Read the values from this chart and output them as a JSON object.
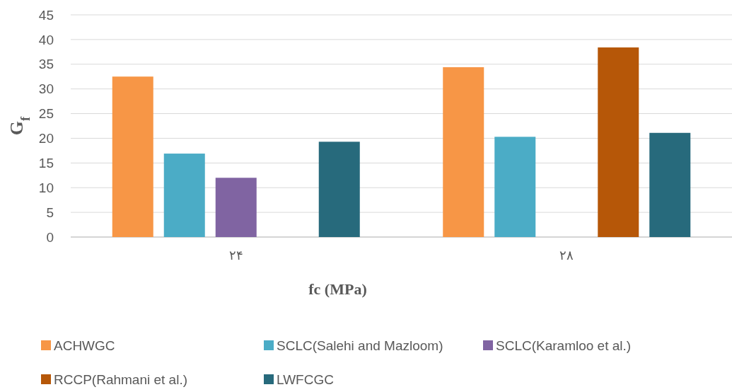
{
  "chart_data": {
    "type": "bar",
    "xlabel": "fc (MPa)",
    "ylabel": "G$_{f}$",
    "categories": [
      "۲۴",
      "۲۸"
    ],
    "series": [
      {
        "name": "ACHWGC",
        "color": "#f79646",
        "values": [
          32.5,
          34.4
        ]
      },
      {
        "name": "SCLC(Salehi and Mazloom)",
        "color": "#4bacc6",
        "values": [
          16.9,
          20.3
        ]
      },
      {
        "name": "SCLC(Karamloo et al.)",
        "color": "#8064a2",
        "values": [
          12.0,
          null
        ]
      },
      {
        "name": "RCCP(Rahmani et al.)",
        "color": "#b65708",
        "values": [
          null,
          38.4
        ]
      },
      {
        "name": "LWFCGC",
        "color": "#276a7c",
        "values": [
          19.3,
          21.1
        ]
      }
    ],
    "ylim": [
      0,
      45
    ],
    "yticks": [
      0,
      5,
      10,
      15,
      20,
      25,
      30,
      35,
      40,
      45
    ],
    "grid": "y",
    "legend": "bottom"
  }
}
